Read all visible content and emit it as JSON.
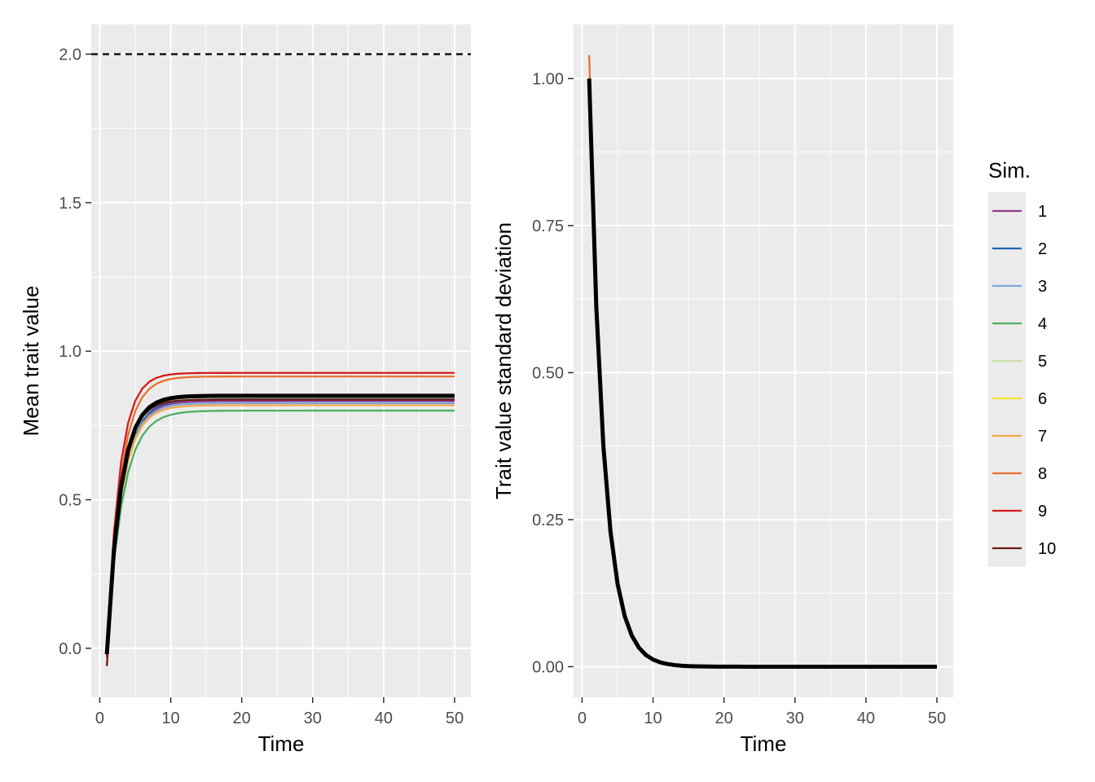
{
  "chart_data": [
    {
      "type": "line",
      "xlabel": "Time",
      "ylabel": "Mean trait value",
      "xlim": [
        -1.2,
        52.3
      ],
      "ylim": [
        -0.165,
        2.1
      ],
      "xticks": [
        0,
        10,
        20,
        30,
        40,
        50
      ],
      "xtick_labels": [
        "0",
        "10",
        "20",
        "30",
        "40",
        "50"
      ],
      "yticks": [
        0,
        0.5,
        1,
        1.5,
        2
      ],
      "ytick_labels": [
        "0.0",
        "0.5",
        "1.0",
        "1.5",
        "2.0"
      ],
      "reference_line": {
        "y": 2.0,
        "style": "dashed",
        "color": "#000000"
      },
      "model": {
        "form": "plateau * (1 - exp(-rate*(t-1))) + start",
        "t_start": 1,
        "t_end": 50
      },
      "series": [
        {
          "name": "1",
          "color": "#8E3B8E",
          "start": -0.02,
          "plateau": 0.852,
          "rate": 0.5
        },
        {
          "name": "2",
          "color": "#1F64B4",
          "start": -0.02,
          "plateau": 0.858,
          "rate": 0.5
        },
        {
          "name": "3",
          "color": "#7FA8DA",
          "start": -0.02,
          "plateau": 0.845,
          "rate": 0.5
        },
        {
          "name": "4",
          "color": "#4DAF60",
          "start": 0.0,
          "plateau": 0.8,
          "rate": 0.45
        },
        {
          "name": "5",
          "color": "#C9DFA0",
          "start": -0.02,
          "plateau": 0.865,
          "rate": 0.5
        },
        {
          "name": "6",
          "color": "#F2E52A",
          "start": -0.02,
          "plateau": 0.872,
          "rate": 0.5
        },
        {
          "name": "7",
          "color": "#F7A84A",
          "start": -0.02,
          "plateau": 0.838,
          "rate": 0.5
        },
        {
          "name": "8",
          "color": "#E8712F",
          "start": -0.02,
          "plateau": 0.935,
          "rate": 0.52
        },
        {
          "name": "9",
          "color": "#D7191C",
          "start": -0.03,
          "plateau": 0.957,
          "rate": 0.58
        },
        {
          "name": "10",
          "color": "#6E1A10",
          "start": -0.06,
          "plateau": 0.897,
          "rate": 0.55
        }
      ],
      "mean_series": {
        "color": "#000000",
        "start": -0.02,
        "plateau": 0.87,
        "rate": 0.52
      }
    },
    {
      "type": "line",
      "xlabel": "Time",
      "ylabel": "Trait value standard deviation",
      "xlim": [
        -1.2,
        52.3
      ],
      "ylim": [
        -0.052,
        1.092
      ],
      "xticks": [
        0,
        10,
        20,
        30,
        40,
        50
      ],
      "xtick_labels": [
        "0",
        "10",
        "20",
        "30",
        "40",
        "50"
      ],
      "yticks": [
        0,
        0.25,
        0.5,
        0.75,
        1.0
      ],
      "ytick_labels": [
        "0.00",
        "0.25",
        "0.50",
        "0.75",
        "1.00"
      ],
      "model": {
        "form": "start * exp(-rate*(t-1))",
        "t_start": 1,
        "t_end": 50
      },
      "series": [
        {
          "name": "1",
          "color": "#8E3B8E",
          "start": 1.0,
          "rate": 0.49
        },
        {
          "name": "2",
          "color": "#1F64B4",
          "start": 1.0,
          "rate": 0.49
        },
        {
          "name": "3",
          "color": "#7FA8DA",
          "start": 1.0,
          "rate": 0.49
        },
        {
          "name": "4",
          "color": "#4DAF60",
          "start": 1.0,
          "rate": 0.49
        },
        {
          "name": "5",
          "color": "#C9DFA0",
          "start": 1.0,
          "rate": 0.49
        },
        {
          "name": "6",
          "color": "#F2E52A",
          "start": 1.0,
          "rate": 0.49
        },
        {
          "name": "7",
          "color": "#F7A84A",
          "start": 1.0,
          "rate": 0.482
        },
        {
          "name": "8",
          "color": "#E8712F",
          "start": 1.04,
          "rate": 0.49
        },
        {
          "name": "9",
          "color": "#D7191C",
          "start": 1.0,
          "rate": 0.49
        },
        {
          "name": "10",
          "color": "#6E1A10",
          "start": 1.0,
          "rate": 0.49
        }
      ],
      "mean_series": {
        "color": "#000000",
        "start": 1.0,
        "rate": 0.49
      }
    }
  ],
  "legend": {
    "title": "Sim.",
    "placement": "right",
    "items": [
      {
        "label": "1",
        "color": "#8E3B8E"
      },
      {
        "label": "2",
        "color": "#1F64B4"
      },
      {
        "label": "3",
        "color": "#7FA8DA"
      },
      {
        "label": "4",
        "color": "#4DAF60"
      },
      {
        "label": "5",
        "color": "#C9DFA0"
      },
      {
        "label": "6",
        "color": "#F2E52A"
      },
      {
        "label": "7",
        "color": "#F7A84A"
      },
      {
        "label": "8",
        "color": "#E8712F"
      },
      {
        "label": "9",
        "color": "#D7191C"
      },
      {
        "label": "10",
        "color": "#6E1A10"
      }
    ]
  }
}
